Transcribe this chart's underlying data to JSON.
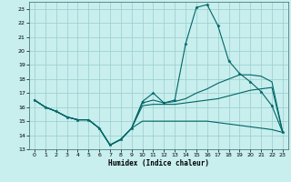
{
  "xlabel": "Humidex (Indice chaleur)",
  "bg_color": "#c8eeee",
  "grid_color": "#99cccc",
  "line_color": "#006666",
  "xlim": [
    -0.5,
    23.5
  ],
  "ylim": [
    13,
    23.5
  ],
  "yticks": [
    13,
    14,
    15,
    16,
    17,
    18,
    19,
    20,
    21,
    22,
    23
  ],
  "xticks": [
    0,
    1,
    2,
    3,
    4,
    5,
    6,
    7,
    8,
    9,
    10,
    11,
    12,
    13,
    14,
    15,
    16,
    17,
    18,
    19,
    20,
    21,
    22,
    23
  ],
  "x": [
    0,
    1,
    2,
    3,
    4,
    5,
    6,
    7,
    8,
    9,
    10,
    11,
    12,
    13,
    14,
    15,
    16,
    17,
    18,
    19,
    20,
    21,
    22,
    23
  ],
  "line_peak": [
    16.5,
    16.0,
    15.7,
    15.3,
    15.1,
    15.1,
    14.5,
    13.3,
    13.7,
    14.5,
    16.4,
    17.0,
    16.3,
    16.5,
    20.5,
    23.1,
    23.3,
    21.8,
    19.3,
    18.4,
    17.8,
    17.1,
    16.1,
    14.2
  ],
  "line_high": [
    16.5,
    16.0,
    15.7,
    15.3,
    15.1,
    15.1,
    14.5,
    13.3,
    13.7,
    14.5,
    16.3,
    16.5,
    16.3,
    16.4,
    16.6,
    17.0,
    17.3,
    17.7,
    18.0,
    18.3,
    18.3,
    18.2,
    17.8,
    14.2
  ],
  "line_mid": [
    16.5,
    16.0,
    15.7,
    15.3,
    15.1,
    15.1,
    14.5,
    13.3,
    13.7,
    14.5,
    16.1,
    16.2,
    16.2,
    16.2,
    16.3,
    16.4,
    16.5,
    16.6,
    16.8,
    17.0,
    17.2,
    17.3,
    17.4,
    14.2
  ],
  "line_low": [
    16.5,
    16.0,
    15.7,
    15.3,
    15.1,
    15.1,
    14.5,
    13.3,
    13.7,
    14.5,
    15.0,
    15.0,
    15.0,
    15.0,
    15.0,
    15.0,
    15.0,
    14.9,
    14.8,
    14.7,
    14.6,
    14.5,
    14.4,
    14.2
  ]
}
